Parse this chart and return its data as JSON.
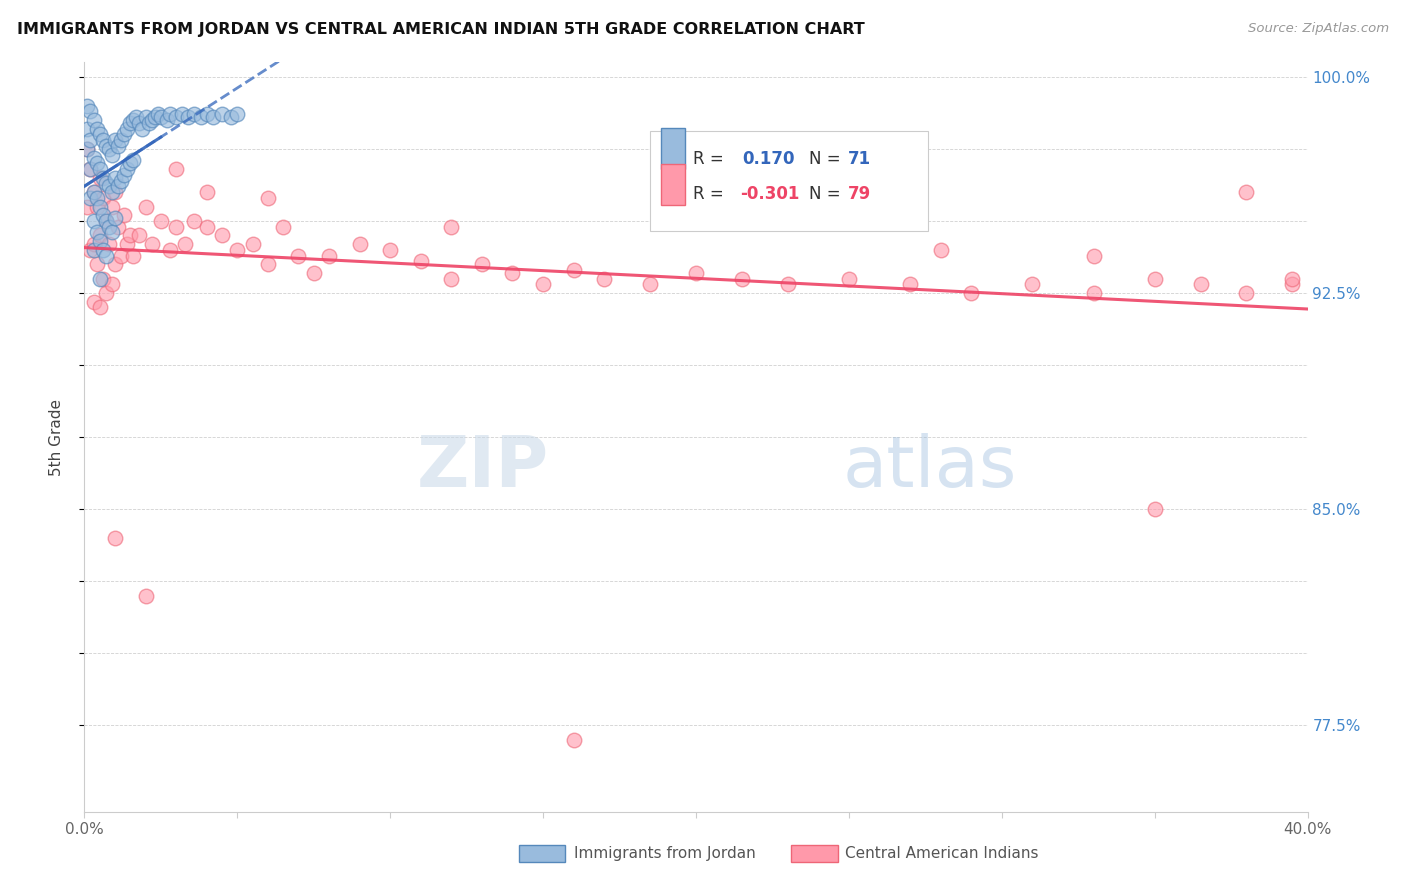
{
  "title": "IMMIGRANTS FROM JORDAN VS CENTRAL AMERICAN INDIAN 5TH GRADE CORRELATION CHART",
  "source_text": "Source: ZipAtlas.com",
  "ylabel": "5th Grade",
  "xlim": [
    0.0,
    0.4
  ],
  "ylim": [
    0.745,
    1.005
  ],
  "xticks": [
    0.0,
    0.05,
    0.1,
    0.15,
    0.2,
    0.25,
    0.3,
    0.35,
    0.4
  ],
  "xticklabels": [
    "0.0%",
    "",
    "",
    "",
    "",
    "",
    "",
    "",
    "40.0%"
  ],
  "yticks": [
    0.775,
    0.8,
    0.825,
    0.85,
    0.875,
    0.9,
    0.925,
    0.95,
    0.975,
    1.0
  ],
  "yticklabels_right": [
    "77.5%",
    "",
    "",
    "85.0%",
    "",
    "",
    "92.5%",
    "",
    "",
    "100.0%"
  ],
  "blue_fill": "#99BBDD",
  "blue_edge": "#5588BB",
  "pink_fill": "#FF99AA",
  "pink_edge": "#EE6677",
  "blue_line_color": "#3366BB",
  "pink_line_color": "#EE4466",
  "jordan_x": [
    0.001,
    0.001,
    0.001,
    0.002,
    0.002,
    0.002,
    0.002,
    0.003,
    0.003,
    0.003,
    0.003,
    0.003,
    0.004,
    0.004,
    0.004,
    0.004,
    0.005,
    0.005,
    0.005,
    0.005,
    0.005,
    0.006,
    0.006,
    0.006,
    0.006,
    0.007,
    0.007,
    0.007,
    0.007,
    0.008,
    0.008,
    0.008,
    0.009,
    0.009,
    0.009,
    0.01,
    0.01,
    0.01,
    0.011,
    0.011,
    0.012,
    0.012,
    0.013,
    0.013,
    0.014,
    0.014,
    0.015,
    0.015,
    0.016,
    0.016,
    0.017,
    0.018,
    0.019,
    0.02,
    0.021,
    0.022,
    0.023,
    0.024,
    0.025,
    0.027,
    0.028,
    0.03,
    0.032,
    0.034,
    0.036,
    0.038,
    0.04,
    0.042,
    0.045,
    0.048,
    0.05
  ],
  "jordan_y": [
    0.99,
    0.982,
    0.975,
    0.988,
    0.978,
    0.968,
    0.958,
    0.985,
    0.972,
    0.96,
    0.95,
    0.94,
    0.982,
    0.97,
    0.958,
    0.946,
    0.98,
    0.968,
    0.955,
    0.943,
    0.93,
    0.978,
    0.965,
    0.952,
    0.94,
    0.976,
    0.963,
    0.95,
    0.938,
    0.975,
    0.962,
    0.948,
    0.973,
    0.96,
    0.946,
    0.978,
    0.965,
    0.951,
    0.976,
    0.962,
    0.978,
    0.964,
    0.98,
    0.966,
    0.982,
    0.968,
    0.984,
    0.97,
    0.985,
    0.971,
    0.986,
    0.984,
    0.982,
    0.986,
    0.984,
    0.985,
    0.986,
    0.987,
    0.986,
    0.985,
    0.987,
    0.986,
    0.987,
    0.986,
    0.987,
    0.986,
    0.987,
    0.986,
    0.987,
    0.986,
    0.987
  ],
  "ca_indian_x": [
    0.001,
    0.001,
    0.002,
    0.002,
    0.003,
    0.003,
    0.003,
    0.004,
    0.004,
    0.005,
    0.005,
    0.005,
    0.006,
    0.006,
    0.007,
    0.007,
    0.008,
    0.009,
    0.009,
    0.01,
    0.01,
    0.011,
    0.012,
    0.013,
    0.014,
    0.015,
    0.016,
    0.018,
    0.02,
    0.022,
    0.025,
    0.028,
    0.03,
    0.033,
    0.036,
    0.04,
    0.045,
    0.05,
    0.055,
    0.06,
    0.065,
    0.07,
    0.075,
    0.08,
    0.09,
    0.1,
    0.11,
    0.12,
    0.13,
    0.14,
    0.15,
    0.16,
    0.17,
    0.185,
    0.2,
    0.215,
    0.23,
    0.25,
    0.27,
    0.29,
    0.31,
    0.33,
    0.35,
    0.365,
    0.38,
    0.395,
    0.03,
    0.06,
    0.12,
    0.2,
    0.28,
    0.33,
    0.01,
    0.02,
    0.04,
    0.35,
    0.38,
    0.16,
    0.395
  ],
  "ca_indian_y": [
    0.975,
    0.955,
    0.968,
    0.94,
    0.96,
    0.942,
    0.922,
    0.955,
    0.935,
    0.965,
    0.945,
    0.92,
    0.958,
    0.93,
    0.95,
    0.925,
    0.942,
    0.955,
    0.928,
    0.96,
    0.935,
    0.948,
    0.938,
    0.952,
    0.942,
    0.945,
    0.938,
    0.945,
    0.955,
    0.942,
    0.95,
    0.94,
    0.948,
    0.942,
    0.95,
    0.948,
    0.945,
    0.94,
    0.942,
    0.935,
    0.948,
    0.938,
    0.932,
    0.938,
    0.942,
    0.94,
    0.936,
    0.93,
    0.935,
    0.932,
    0.928,
    0.933,
    0.93,
    0.928,
    0.932,
    0.93,
    0.928,
    0.93,
    0.928,
    0.925,
    0.928,
    0.925,
    0.93,
    0.928,
    0.925,
    0.928,
    0.968,
    0.958,
    0.948,
    0.96,
    0.94,
    0.938,
    0.84,
    0.82,
    0.96,
    0.85,
    0.96,
    0.77,
    0.93
  ]
}
